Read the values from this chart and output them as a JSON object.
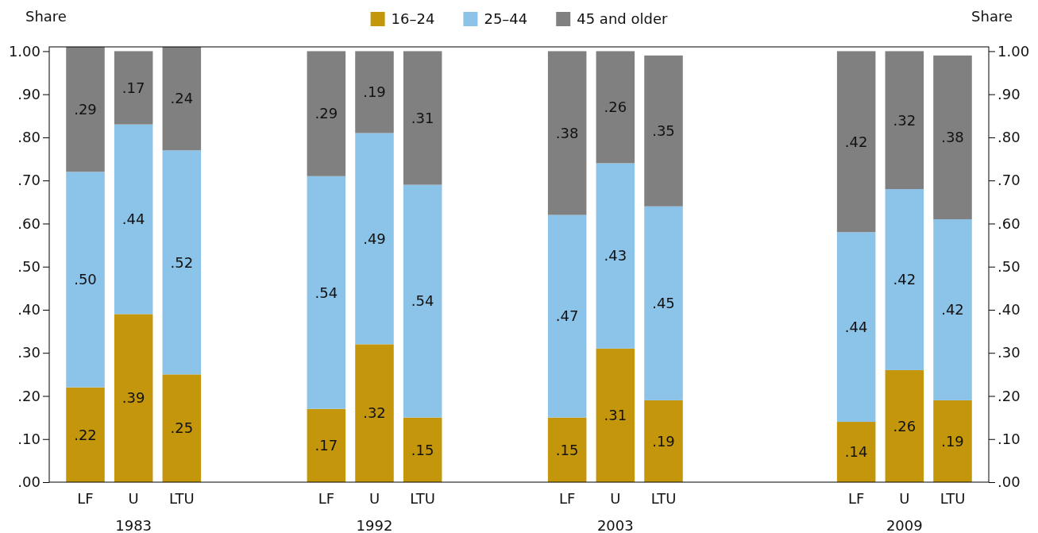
{
  "chart_data": {
    "type": "bar",
    "stacked": true,
    "categories": [
      "LF",
      "U",
      "LTU",
      null,
      null,
      "LF",
      "U",
      "LTU",
      null,
      null,
      "LF",
      "U",
      "LTU",
      null,
      null,
      null,
      "LF",
      "U",
      "LTU"
    ],
    "series": [
      {
        "name": "16–24",
        "color": "#c4960c",
        "values": [
          0.22,
          0.39,
          0.25,
          null,
          null,
          0.17,
          0.32,
          0.15,
          null,
          null,
          0.15,
          0.31,
          0.19,
          null,
          null,
          null,
          0.14,
          0.26,
          0.19
        ],
        "value_labels": [
          ".22",
          ".39",
          ".25",
          null,
          null,
          ".17",
          ".32",
          ".15",
          null,
          null,
          ".15",
          ".31",
          ".19",
          null,
          null,
          null,
          ".14",
          ".26",
          ".19"
        ]
      },
      {
        "name": "25–44",
        "color": "#8cc3e8",
        "values": [
          0.5,
          0.44,
          0.52,
          null,
          null,
          0.54,
          0.49,
          0.54,
          null,
          null,
          0.47,
          0.43,
          0.45,
          null,
          null,
          null,
          0.44,
          0.42,
          0.42
        ],
        "value_labels": [
          ".50",
          ".44",
          ".52",
          null,
          null,
          ".54",
          ".49",
          ".54",
          null,
          null,
          ".47",
          ".43",
          ".45",
          null,
          null,
          null,
          ".44",
          ".42",
          ".42"
        ]
      },
      {
        "name": "45 and older",
        "color": "#808080",
        "values": [
          0.29,
          0.17,
          0.24,
          null,
          null,
          0.29,
          0.19,
          0.31,
          null,
          null,
          0.38,
          0.26,
          0.35,
          null,
          null,
          null,
          0.42,
          0.32,
          0.38
        ],
        "value_labels": [
          ".29",
          ".17",
          ".24",
          null,
          null,
          ".29",
          ".19",
          ".31",
          null,
          null,
          ".38",
          ".26",
          ".35",
          null,
          null,
          null,
          ".42",
          ".32",
          ".38"
        ]
      }
    ],
    "ylabel": "Share",
    "y2label": "Share",
    "ylim": [
      0,
      1.01
    ],
    "yticks": [
      {
        "value": 0,
        "label": ".00"
      },
      {
        "value": 0.1,
        "label": ".10"
      },
      {
        "value": 0.2,
        "label": ".20"
      },
      {
        "value": 0.3,
        "label": ".30"
      },
      {
        "value": 0.4,
        "label": ".40"
      },
      {
        "value": 0.5,
        "label": ".50"
      },
      {
        "value": 0.6,
        "label": ".60"
      },
      {
        "value": 0.7,
        "label": ".70"
      },
      {
        "value": 0.8,
        "label": ".80"
      },
      {
        "value": 0.9,
        "label": ".90"
      },
      {
        "value": 1,
        "label": "1.00"
      }
    ],
    "y2lim": [
      0,
      1.01
    ],
    "y2ticks": [
      {
        "value": 0,
        "label": ".00"
      },
      {
        "value": 0.1,
        "label": ".10"
      },
      {
        "value": 0.2,
        "label": ".20"
      },
      {
        "value": 0.3,
        "label": ".30"
      },
      {
        "value": 0.4,
        "label": ".40"
      },
      {
        "value": 0.5,
        "label": ".50"
      },
      {
        "value": 0.6,
        "label": ".60"
      },
      {
        "value": 0.7,
        "label": ".70"
      },
      {
        "value": 0.8,
        "label": ".80"
      },
      {
        "value": 0.9,
        "label": ".90"
      },
      {
        "value": 1,
        "label": "1.00"
      }
    ],
    "annotations": [
      "1983",
      "1992",
      "2003",
      "2009"
    ],
    "legend": "top",
    "grid": false
  }
}
